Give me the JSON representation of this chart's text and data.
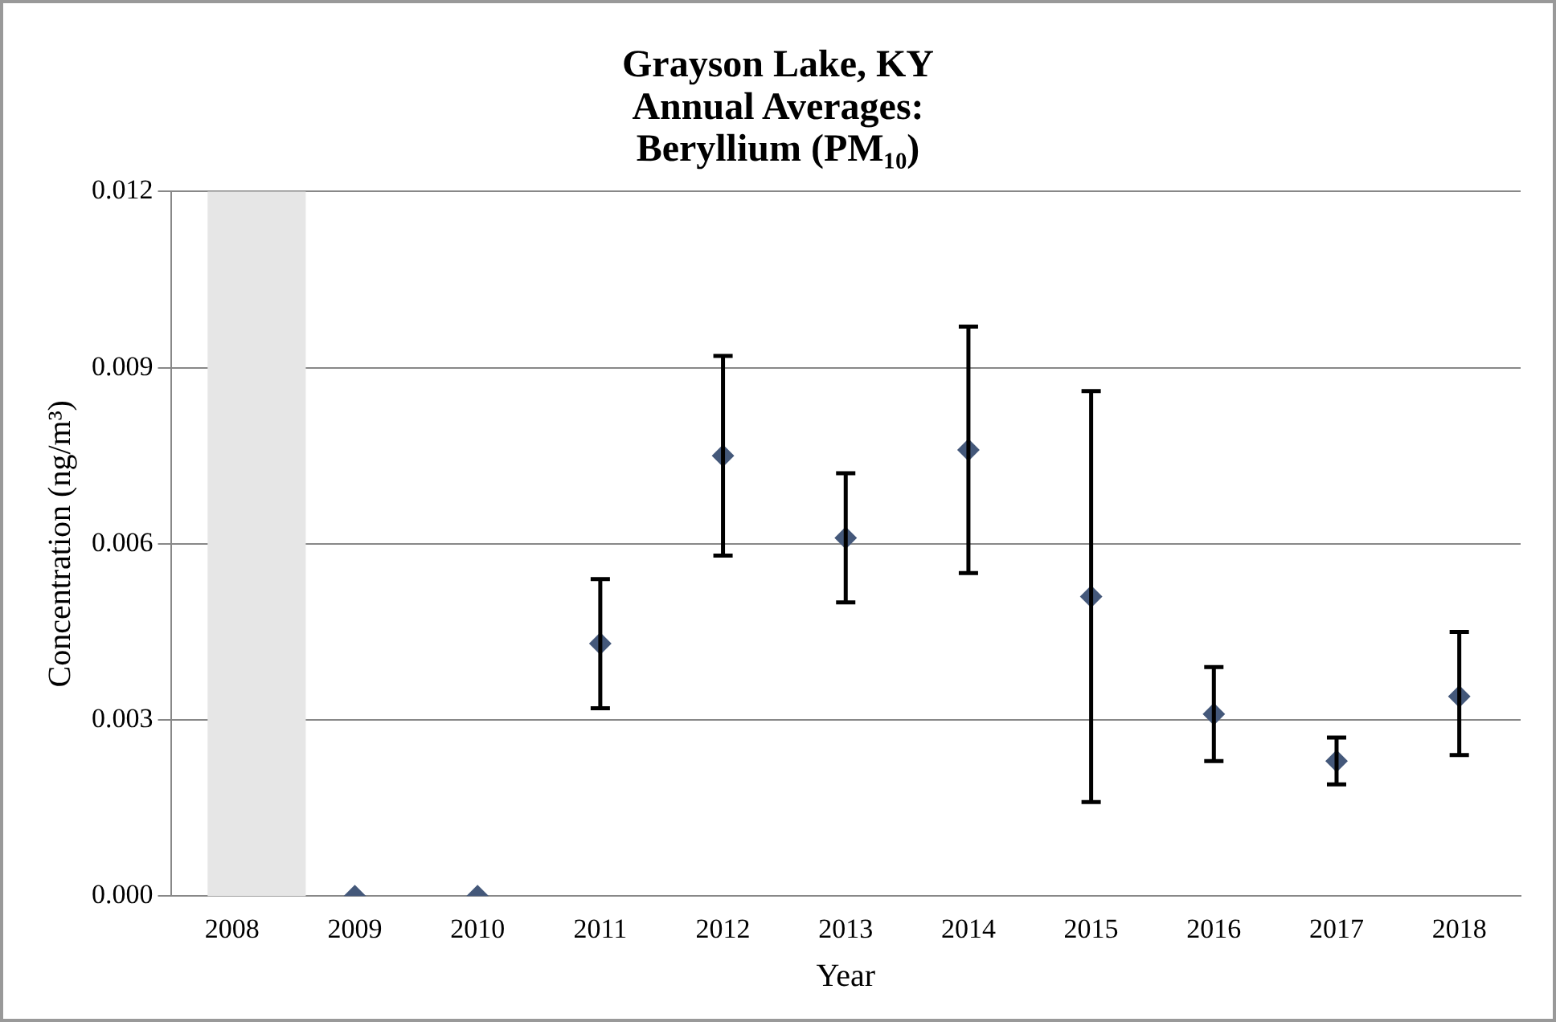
{
  "chart_data": {
    "type": "scatter",
    "title": "Grayson Lake, KY\nAnnual Averages:\nBeryllium (PM₁₀)",
    "xlabel": "Year",
    "ylabel": "Concentration (ng/m³)",
    "categories": [
      "2008",
      "2009",
      "2010",
      "2011",
      "2012",
      "2013",
      "2014",
      "2015",
      "2016",
      "2017",
      "2018"
    ],
    "values": [
      null,
      0,
      0,
      0.0043,
      0.0075,
      0.0061,
      0.0076,
      0.0051,
      0.0031,
      0.0023,
      0.0034
    ],
    "errors": [
      null,
      null,
      null,
      [
        0.0032,
        0.0054
      ],
      [
        0.0058,
        0.0092
      ],
      [
        0.005,
        0.0072
      ],
      [
        0.0055,
        0.0097
      ],
      [
        0.0016,
        0.0086
      ],
      [
        0.0023,
        0.0039
      ],
      [
        0.0019,
        0.0027
      ],
      [
        0.0024,
        0.0045
      ]
    ],
    "color": "#44587a",
    "marker": "diamond",
    "grid": "y",
    "legend": false,
    "ylim": [
      0,
      0.012
    ],
    "yticks": [
      {
        "value": 0,
        "label": "0.000"
      },
      {
        "value": 0.003,
        "label": "0.003"
      },
      {
        "value": 0.006,
        "label": "0.006"
      },
      {
        "value": 0.009,
        "label": "0.009"
      },
      {
        "value": 0.012,
        "label": "0.012"
      }
    ],
    "bands": [
      {
        "axis": "x",
        "from": "2008",
        "to": "2008",
        "color": "#e6e6e6"
      }
    ]
  }
}
